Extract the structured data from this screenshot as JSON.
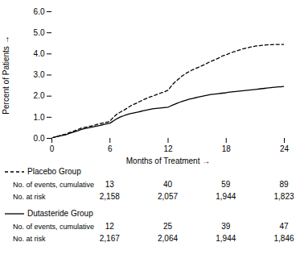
{
  "chart_data": {
    "type": "line",
    "xlabel": "Months of Treatment",
    "ylabel": "Percent of Patients",
    "xlim": [
      0,
      24
    ],
    "ylim": [
      0,
      6
    ],
    "xticks": [
      0,
      6,
      12,
      18,
      24
    ],
    "yticks": [
      0,
      1,
      2,
      3,
      4,
      5,
      6
    ],
    "grid": false,
    "x": [
      0,
      0.2,
      0.4,
      0.6,
      0.8,
      1.0,
      1.2,
      1.4,
      1.6,
      1.8,
      2.0,
      2.2,
      2.4,
      2.6,
      2.8,
      3.0,
      3.2,
      3.4,
      3.6,
      3.8,
      4.0,
      4.2,
      4.4,
      4.6,
      4.8,
      5.0,
      5.2,
      5.4,
      5.6,
      5.8,
      6.0,
      6.2,
      6.4,
      6.6,
      6.8,
      7.0,
      7.2,
      7.4,
      7.6,
      7.8,
      8.0,
      8.2,
      8.4,
      8.6,
      8.8,
      9.0,
      9.2,
      9.4,
      9.6,
      9.8,
      10.0,
      10.2,
      10.4,
      10.6,
      10.8,
      11.0,
      11.2,
      11.4,
      11.6,
      11.8,
      12.0,
      12.2,
      12.4,
      12.6,
      12.8,
      13.0,
      13.2,
      13.4,
      13.6,
      13.8,
      14.0,
      14.2,
      14.4,
      14.6,
      14.8,
      15.0,
      15.2,
      15.4,
      15.6,
      15.8,
      16.0,
      16.2,
      16.4,
      16.6,
      16.8,
      17.0,
      17.2,
      17.4,
      17.6,
      17.8,
      18.0,
      18.2,
      18.4,
      18.6,
      18.8,
      19.0,
      19.2,
      19.4,
      19.6,
      19.8,
      20.0,
      20.2,
      20.4,
      20.6,
      20.8,
      21.0,
      21.2,
      21.4,
      21.6,
      21.8,
      22.0,
      22.2,
      22.4,
      22.6,
      22.8,
      23.0,
      23.2,
      23.4,
      23.6,
      23.8,
      24.0
    ],
    "series": [
      {
        "name": "Placebo Group",
        "color": "#000000",
        "line_style": "dashed",
        "values": [
          0,
          0.05,
          0.08,
          0.1,
          0.13,
          0.15,
          0.18,
          0.2,
          0.23,
          0.27,
          0.3,
          0.33,
          0.37,
          0.4,
          0.44,
          0.48,
          0.5,
          0.52,
          0.54,
          0.56,
          0.58,
          0.6,
          0.62,
          0.65,
          0.68,
          0.7,
          0.72,
          0.74,
          0.76,
          0.78,
          0.82,
          0.92,
          1.02,
          1.1,
          1.18,
          1.22,
          1.28,
          1.32,
          1.38,
          1.44,
          1.5,
          1.56,
          1.6,
          1.64,
          1.68,
          1.73,
          1.77,
          1.82,
          1.86,
          1.9,
          1.94,
          1.97,
          2.0,
          2.04,
          2.07,
          2.1,
          2.14,
          2.17,
          2.2,
          2.24,
          2.28,
          2.4,
          2.52,
          2.62,
          2.7,
          2.78,
          2.86,
          2.94,
          3.0,
          3.06,
          3.12,
          3.17,
          3.22,
          3.26,
          3.3,
          3.34,
          3.38,
          3.42,
          3.46,
          3.5,
          3.55,
          3.6,
          3.65,
          3.68,
          3.72,
          3.76,
          3.8,
          3.85,
          3.9,
          3.93,
          3.96,
          4.0,
          4.04,
          4.07,
          4.1,
          4.13,
          4.16,
          4.19,
          4.22,
          4.25,
          4.27,
          4.29,
          4.31,
          4.33,
          4.35,
          4.37,
          4.38,
          4.39,
          4.4,
          4.41,
          4.42,
          4.43,
          4.44,
          4.44,
          4.44,
          4.45,
          4.45,
          4.45,
          4.45,
          4.45,
          4.45
        ],
        "events": [
          13,
          40,
          59,
          89
        ],
        "at_risk": [
          "2,158",
          "2,057",
          "1,944",
          "1,823"
        ]
      },
      {
        "name": "Dutasteride Group",
        "color": "#000000",
        "line_style": "solid",
        "values": [
          0,
          0.04,
          0.07,
          0.09,
          0.11,
          0.13,
          0.15,
          0.17,
          0.2,
          0.23,
          0.26,
          0.29,
          0.32,
          0.35,
          0.38,
          0.42,
          0.44,
          0.46,
          0.48,
          0.5,
          0.52,
          0.54,
          0.56,
          0.58,
          0.6,
          0.62,
          0.64,
          0.66,
          0.68,
          0.7,
          0.72,
          0.78,
          0.84,
          0.9,
          0.95,
          1.0,
          1.04,
          1.07,
          1.1,
          1.13,
          1.16,
          1.18,
          1.2,
          1.22,
          1.24,
          1.26,
          1.28,
          1.3,
          1.32,
          1.34,
          1.36,
          1.38,
          1.4,
          1.41,
          1.42,
          1.43,
          1.44,
          1.45,
          1.46,
          1.47,
          1.48,
          1.52,
          1.56,
          1.6,
          1.64,
          1.68,
          1.71,
          1.74,
          1.77,
          1.8,
          1.83,
          1.86,
          1.88,
          1.9,
          1.92,
          1.94,
          1.96,
          1.98,
          2.0,
          2.02,
          2.04,
          2.06,
          2.08,
          2.09,
          2.1,
          2.11,
          2.12,
          2.13,
          2.14,
          2.15,
          2.16,
          2.18,
          2.19,
          2.2,
          2.21,
          2.22,
          2.23,
          2.24,
          2.25,
          2.26,
          2.27,
          2.28,
          2.29,
          2.3,
          2.31,
          2.32,
          2.33,
          2.34,
          2.35,
          2.36,
          2.37,
          2.38,
          2.39,
          2.4,
          2.41,
          2.42,
          2.43,
          2.44,
          2.44,
          2.45,
          2.46
        ],
        "events": [
          12,
          25,
          39,
          47
        ],
        "at_risk": [
          "2,167",
          "2,064",
          "1,944",
          "1,846"
        ]
      }
    ],
    "table": {
      "x": [
        6,
        12,
        18,
        24
      ],
      "row_labels": [
        "No. of events, cumulative",
        "No. at risk"
      ]
    }
  }
}
